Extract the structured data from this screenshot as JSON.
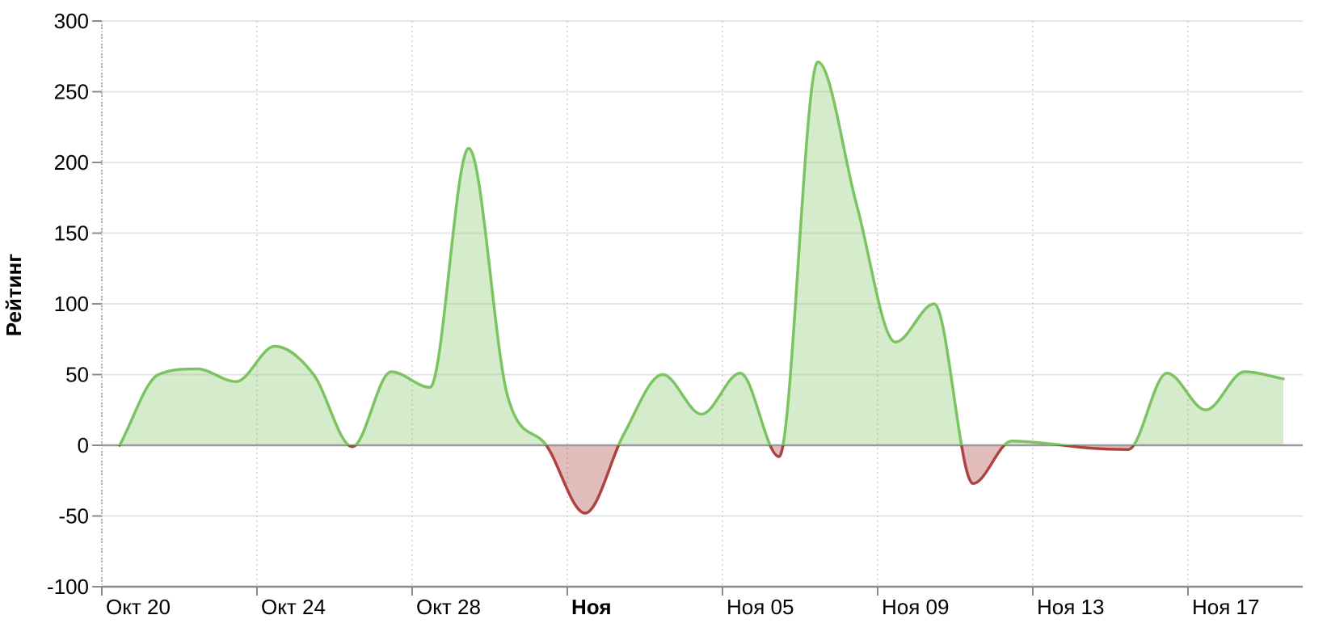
{
  "chart_data": {
    "type": "area",
    "title": "",
    "xlabel": "",
    "ylabel": "Рейтинг",
    "ylim": [
      -100,
      300
    ],
    "y_tick_step": 50,
    "grid": true,
    "legend": false,
    "smoothing": "spline",
    "zero_baseline": true,
    "y_tick_labels": [
      "300",
      "250",
      "200",
      "150",
      "100",
      "50",
      "0",
      "-50",
      "-100"
    ],
    "x_tick_labels": [
      {
        "label": "Окт 20",
        "bold": false,
        "day_offset": 0
      },
      {
        "label": "Окт 24",
        "bold": false,
        "day_offset": 4
      },
      {
        "label": "Окт 28",
        "bold": false,
        "day_offset": 8
      },
      {
        "label": "Ноя",
        "bold": true,
        "day_offset": 12
      },
      {
        "label": "Ноя 05",
        "bold": false,
        "day_offset": 16
      },
      {
        "label": "Ноя 09",
        "bold": false,
        "day_offset": 20
      },
      {
        "label": "Ноя 13",
        "bold": false,
        "day_offset": 24
      },
      {
        "label": "Ноя 17",
        "bold": false,
        "day_offset": 28
      }
    ],
    "series": [
      {
        "name": "Рейтинг",
        "dates": [
          "Окт 20",
          "Окт 21",
          "Окт 22",
          "Окт 23",
          "Окт 24",
          "Окт 25",
          "Окт 26",
          "Окт 27",
          "Окт 28",
          "Окт 29",
          "Окт 30",
          "Окт 31",
          "Ноя 01",
          "Ноя 02",
          "Ноя 03",
          "Ноя 04",
          "Ноя 05",
          "Ноя 06",
          "Ноя 07",
          "Ноя 08",
          "Ноя 09",
          "Ноя 10",
          "Ноя 11",
          "Ноя 12",
          "Ноя 13",
          "Ноя 14",
          "Ноя 15",
          "Ноя 16",
          "Ноя 17",
          "Ноя 18",
          "Ноя 19"
        ],
        "values": [
          0,
          50,
          54,
          45,
          70,
          50,
          -1,
          52,
          41,
          210,
          35,
          0,
          -48,
          8,
          50,
          22,
          51,
          -8,
          271,
          170,
          73,
          100,
          -27,
          3,
          1,
          -2,
          -3,
          51,
          25,
          52,
          47
        ]
      }
    ],
    "colors": {
      "positive_line": "#7CC361",
      "positive_fill": "rgba(124,195,97,0.32)",
      "negative_line": "#AD4340",
      "negative_fill": "rgba(173,67,64,0.35)",
      "grid_line": "#E6E6E6",
      "zero_line": "#9A9A9A",
      "axis_line": "#8C8C8C",
      "tick_mark": "#8C8C8C",
      "vertical_grid": "#D9D9D9",
      "y_axis_dotted": "#AFAFAF",
      "label_text": "#000000",
      "background": "#FFFFFF"
    }
  }
}
